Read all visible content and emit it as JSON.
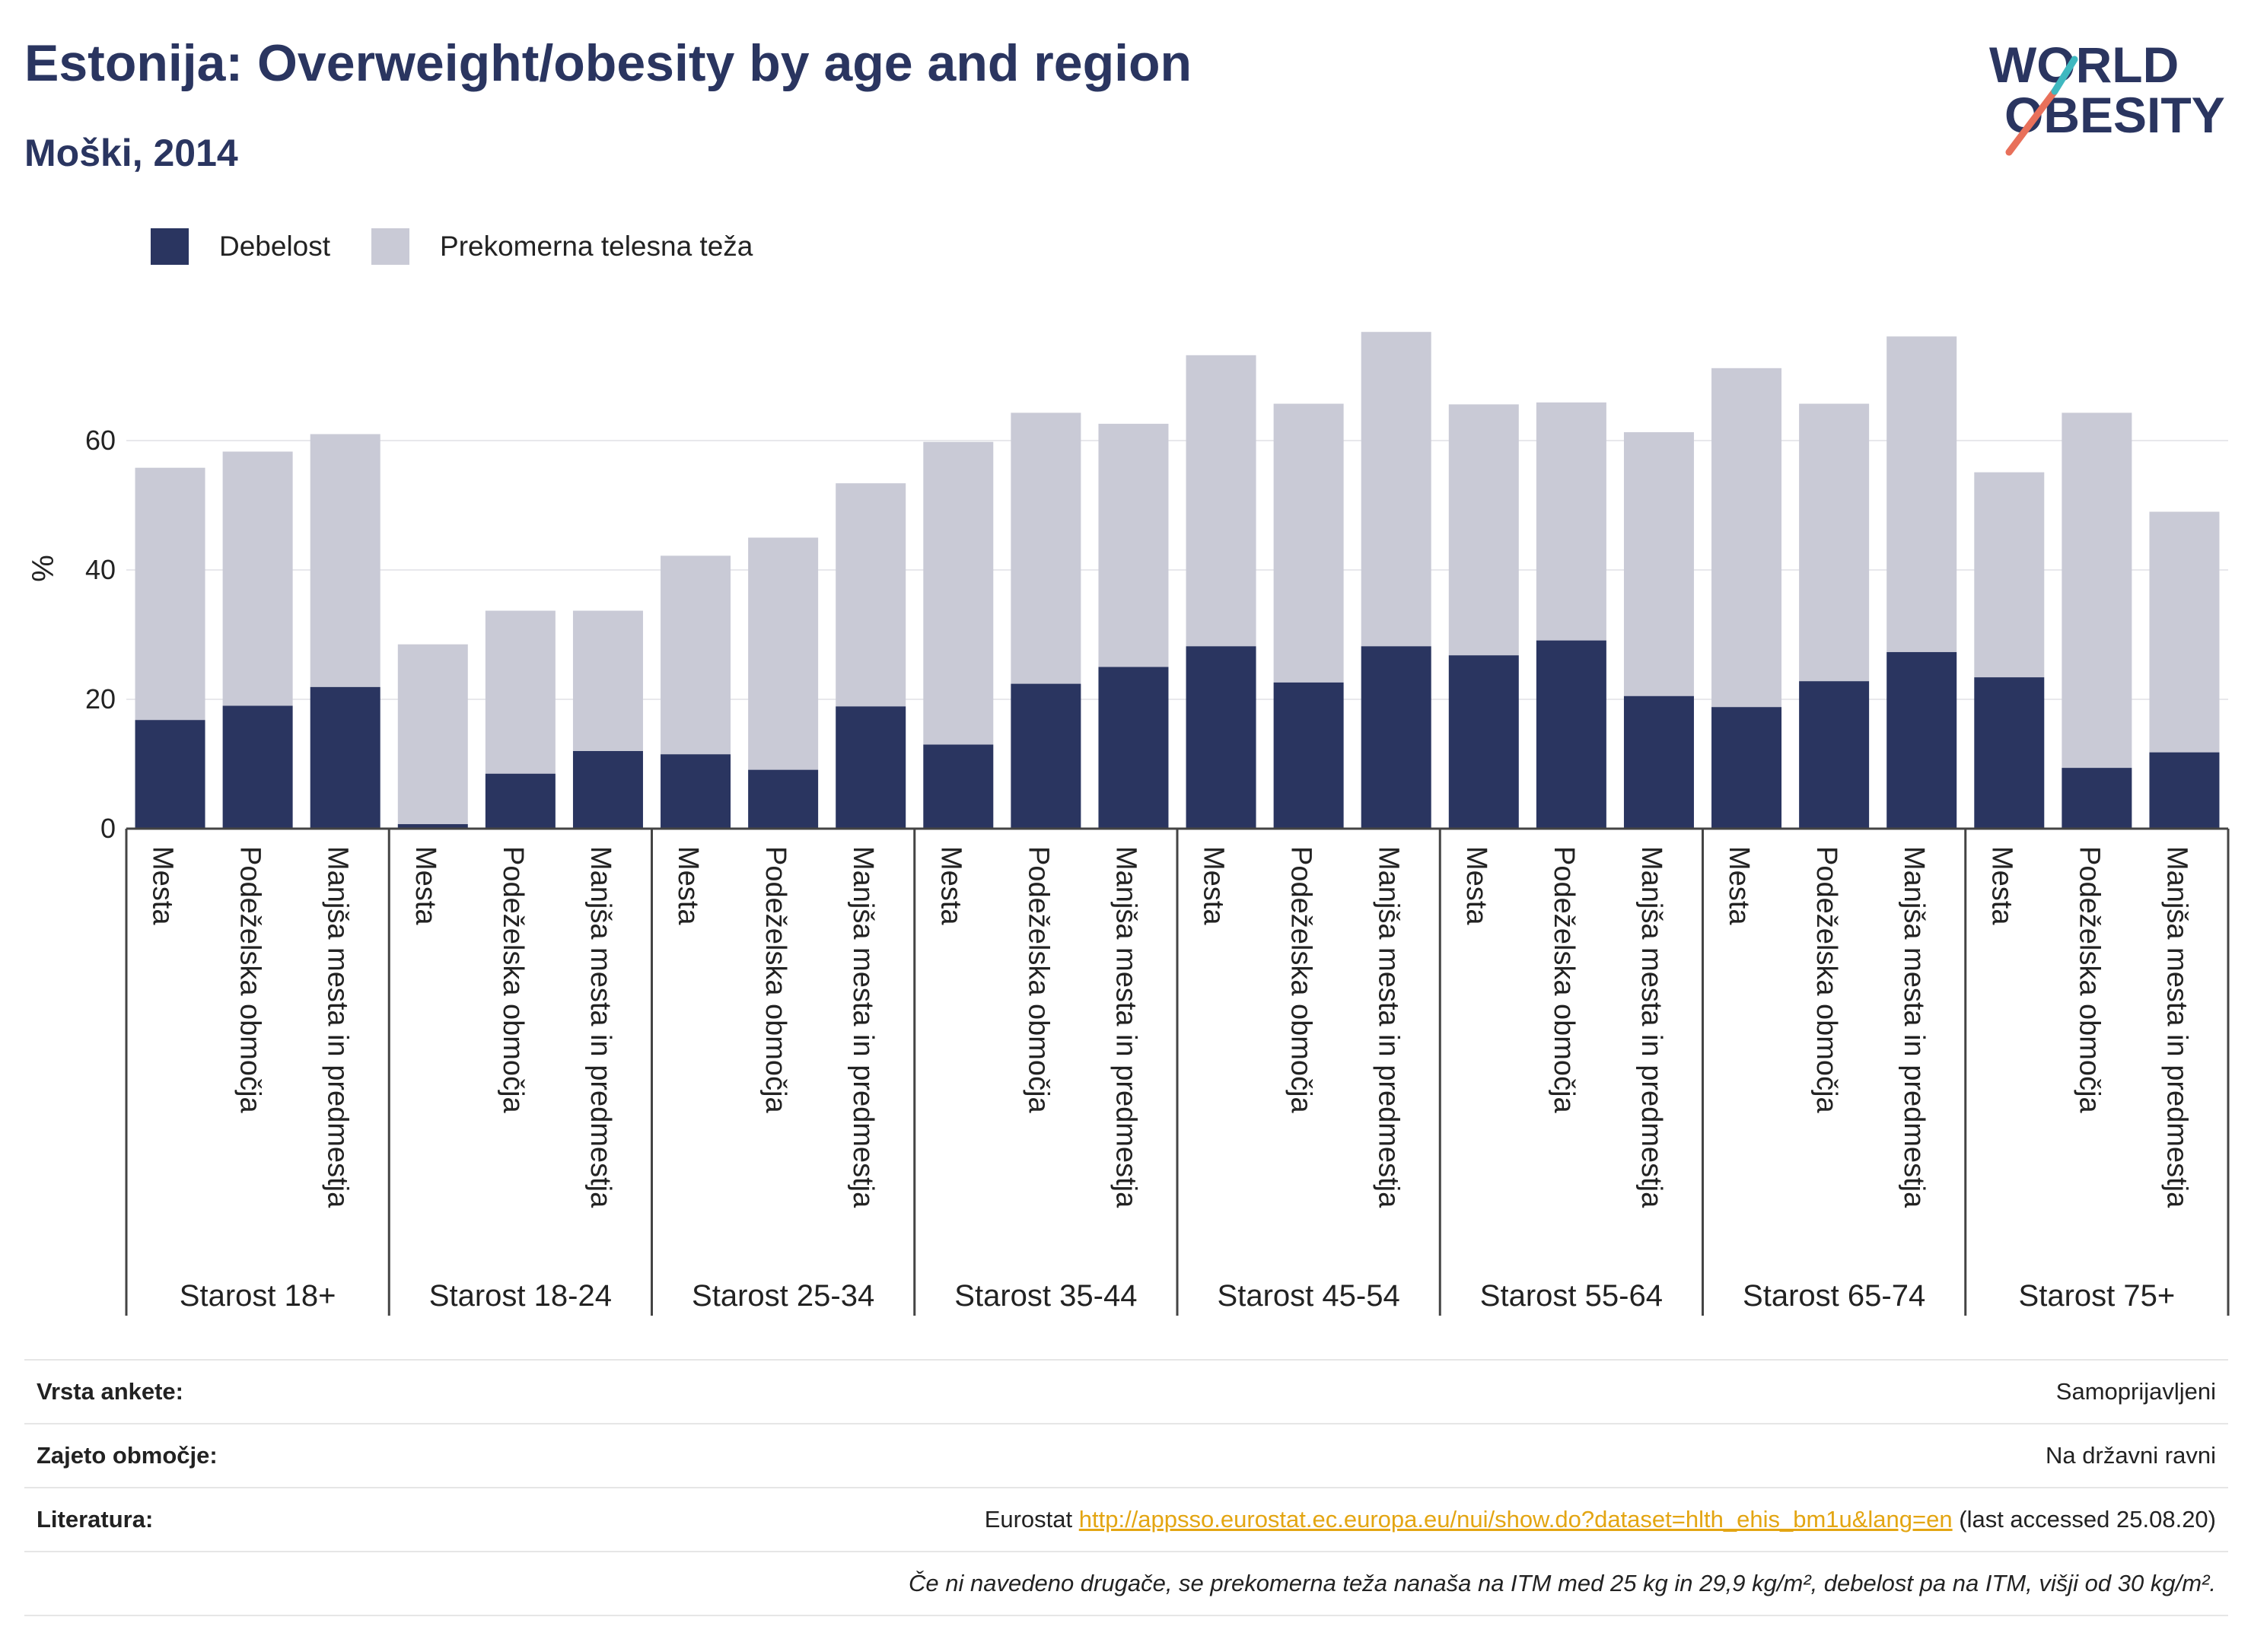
{
  "header": {
    "title": "Estonija: Overweight/obesity by age and region",
    "subtitle": "Moški, 2014"
  },
  "logo": {
    "line1": "WORLD",
    "line2": "OBESITY"
  },
  "legend": [
    {
      "label": "Debelost",
      "color": "#2a3560"
    },
    {
      "label": "Prekomerna telesna teža",
      "color": "#c9cad6"
    }
  ],
  "chart_data": {
    "type": "bar",
    "stacked": true,
    "ylabel": "%",
    "ylim": [
      0,
      80
    ],
    "yticks": [
      0,
      20,
      40,
      60
    ],
    "grid": true,
    "legend_position": "top-left",
    "groups": [
      "Starost 18+",
      "Starost 18-24",
      "Starost 25-34",
      "Starost 35-44",
      "Starost 45-54",
      "Starost 55-64",
      "Starost 65-74",
      "Starost 75+"
    ],
    "categories": [
      "Mesta",
      "Podeželska območja",
      "Manjša mesta in predmestja"
    ],
    "series": [
      {
        "name": "Debelost",
        "color": "#2a3560",
        "values": [
          [
            16.8,
            19.0,
            21.9
          ],
          [
            0.7,
            8.5,
            12.0
          ],
          [
            11.5,
            9.1,
            18.9
          ],
          [
            13.0,
            22.4,
            25.0
          ],
          [
            28.2,
            22.6,
            28.2
          ],
          [
            26.8,
            29.1,
            20.5
          ],
          [
            18.8,
            22.8,
            27.3
          ],
          [
            23.4,
            9.4,
            11.8
          ]
        ]
      },
      {
        "name": "Prekomerna telesna teža",
        "color": "#c9cad6",
        "values": [
          [
            39.0,
            39.3,
            39.1
          ],
          [
            27.8,
            25.2,
            21.7
          ],
          [
            30.7,
            35.9,
            34.5
          ],
          [
            46.8,
            41.9,
            37.6
          ],
          [
            45.0,
            43.1,
            48.6
          ],
          [
            38.8,
            36.8,
            40.8
          ],
          [
            52.4,
            42.9,
            48.8
          ],
          [
            31.7,
            54.9,
            37.2
          ]
        ]
      }
    ]
  },
  "info": {
    "survey_type_label": "Vrsta ankete:",
    "survey_type_value": "Samoprijavljeni",
    "coverage_label": "Zajeto območje:",
    "coverage_value": "Na državni ravni",
    "reference_label": "Literatura:",
    "reference_prefix": "Eurostat",
    "reference_link": "http://appsso.eurostat.ec.europa.eu/nui/show.do?dataset=hlth_ehis_bm1u&lang=en",
    "reference_suffix": "(last accessed 25.08.20)",
    "note": "Če ni navedeno drugače, se prekomerna teža nanaša na ITM med 25 kg in 29,9 kg/m², debelost pa na ITM, višji od 30 kg/m²."
  }
}
